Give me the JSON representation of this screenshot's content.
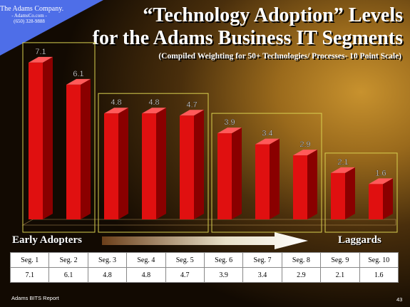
{
  "logo": {
    "company": "The Adams Company.",
    "url": "- AdamsCo.com -",
    "phone": "(650) 328-9888"
  },
  "title": {
    "line1": "“Technology Adoption” Levels",
    "line2": "for the Adams Business IT Segments",
    "subtitle": "(Compiled Weighting for 50+ Technologies/ Processes- 10 Point Scale)"
  },
  "axis_end_labels": {
    "left": "Early Adopters",
    "right": "Laggards"
  },
  "chart_data": {
    "type": "bar",
    "categories": [
      "Seg. 1",
      "Seg. 2",
      "Seg. 3",
      "Seg. 4",
      "Seg. 5",
      "Seg. 6",
      "Seg. 7",
      "Seg. 8",
      "Seg. 9",
      "Seg. 10"
    ],
    "values": [
      7.1,
      6.1,
      4.8,
      4.8,
      4.7,
      3.9,
      3.4,
      2.9,
      2.1,
      1.6
    ],
    "value_labels": [
      "7.1",
      "6.1",
      "4.8",
      "4.8",
      "4.7",
      "3.9",
      "3.4",
      "2.9",
      "2.1",
      "1.6"
    ],
    "title": "“Technology Adoption” Levels for the Adams Business IT Segments",
    "subtitle": "(Compiled Weighting for 50+ Technologies/ Processes- 10 Point Scale)",
    "ylim": [
      0,
      8
    ],
    "grid": false,
    "bar_color": "#e01010",
    "bar_side_color": "#8a0000",
    "bar_top_color": "#ff5a5a",
    "group_box_color": "#d8d050",
    "groups": [
      {
        "segments": [
          1,
          2
        ]
      },
      {
        "segments": [
          3,
          4,
          5
        ]
      },
      {
        "segments": [
          6,
          7,
          8
        ]
      },
      {
        "segments": [
          9,
          10
        ]
      }
    ]
  },
  "table": {
    "header": [
      "Seg. 1",
      "Seg. 2",
      "Seg. 3",
      "Seg. 4",
      "Seg. 5",
      "Seg. 6",
      "Seg. 7",
      "Seg. 8",
      "Seg. 9",
      "Seg. 10"
    ],
    "values": [
      "7.1",
      "6.1",
      "4.8",
      "4.8",
      "4.7",
      "3.9",
      "3.4",
      "2.9",
      "2.1",
      "1.6"
    ]
  },
  "footer": {
    "report": "Adams BITS Report",
    "page": "43"
  }
}
